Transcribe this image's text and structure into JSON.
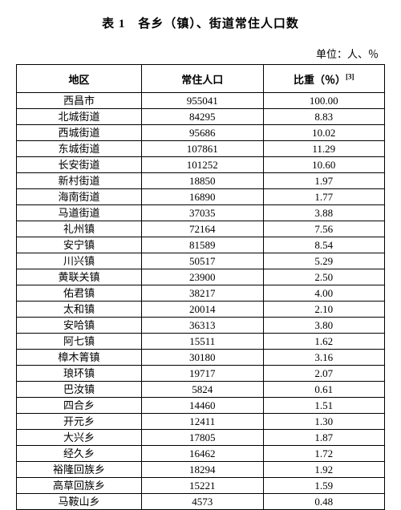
{
  "title": "表 1　各乡（镇）、街道常住人口数",
  "unit_label": "单位：人、％",
  "footnote_mark": "[3]",
  "table": {
    "columns": [
      "地区",
      "常住人口",
      "比重（％）"
    ],
    "rows": [
      [
        "西昌市",
        "955041",
        "100.00"
      ],
      [
        "北城街道",
        "84295",
        "8.83"
      ],
      [
        "西城街道",
        "95686",
        "10.02"
      ],
      [
        "东城街道",
        "107861",
        "11.29"
      ],
      [
        "长安街道",
        "101252",
        "10.60"
      ],
      [
        "新村街道",
        "18850",
        "1.97"
      ],
      [
        "海南街道",
        "16890",
        "1.77"
      ],
      [
        "马道街道",
        "37035",
        "3.88"
      ],
      [
        "礼州镇",
        "72164",
        "7.56"
      ],
      [
        "安宁镇",
        "81589",
        "8.54"
      ],
      [
        "川兴镇",
        "50517",
        "5.29"
      ],
      [
        "黄联关镇",
        "23900",
        "2.50"
      ],
      [
        "佑君镇",
        "38217",
        "4.00"
      ],
      [
        "太和镇",
        "20014",
        "2.10"
      ],
      [
        "安哈镇",
        "36313",
        "3.80"
      ],
      [
        "阿七镇",
        "15511",
        "1.62"
      ],
      [
        "樟木箐镇",
        "30180",
        "3.16"
      ],
      [
        "琅环镇",
        "19717",
        "2.07"
      ],
      [
        "巴汝镇",
        "5824",
        "0.61"
      ],
      [
        "四合乡",
        "14460",
        "1.51"
      ],
      [
        "开元乡",
        "12411",
        "1.30"
      ],
      [
        "大兴乡",
        "17805",
        "1.87"
      ],
      [
        "经久乡",
        "16462",
        "1.72"
      ],
      [
        "裕隆回族乡",
        "18294",
        "1.92"
      ],
      [
        "高草回族乡",
        "15221",
        "1.59"
      ],
      [
        "马鞍山乡",
        "4573",
        "0.48"
      ]
    ]
  }
}
